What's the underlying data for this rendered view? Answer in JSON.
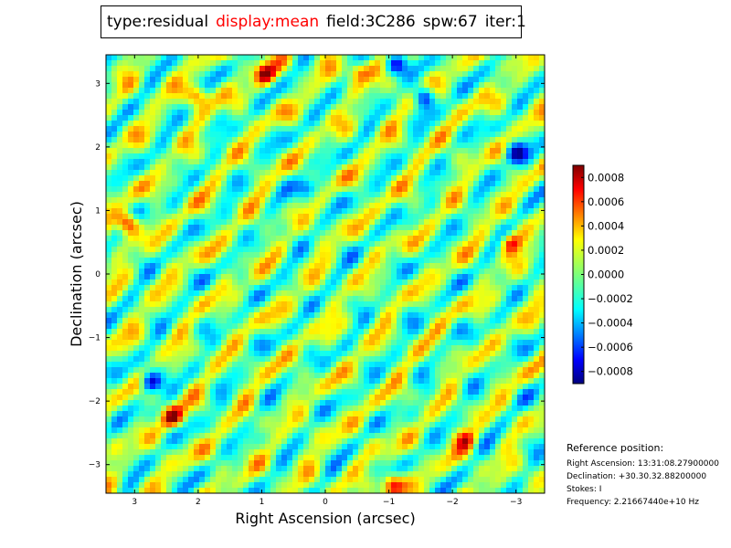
{
  "header": {
    "type_label": "type:residual",
    "display_label": "display:mean",
    "field_label": "field:3C286",
    "spw_label": "spw:67",
    "iter_label": "iter:1",
    "accent_color": "#ff0000"
  },
  "reference": {
    "title": "Reference position:",
    "lines": [
      "Right Ascension: 13:31:08.27900000",
      "Declination: +30.30.32.88200000",
      "Stokes: I",
      "Frequency: 2.21667440e+10 Hz"
    ]
  },
  "chart_data": {
    "type": "heatmap",
    "title": "",
    "xlabel": "Right Ascension (arcsec)",
    "ylabel": "Declination (arcsec)",
    "xlim": [
      3.45,
      -3.45
    ],
    "ylim": [
      -3.45,
      3.45
    ],
    "x_ticks": [
      3,
      2,
      1,
      0,
      -1,
      -2,
      -3
    ],
    "x_tick_labels": [
      "3",
      "2",
      "1",
      "0",
      "−1",
      "−2",
      "−3"
    ],
    "y_ticks": [
      3,
      2,
      1,
      0,
      -1,
      -2,
      -3
    ],
    "y_tick_labels": [
      "3",
      "2",
      "1",
      "0",
      "−1",
      "−2",
      "−3"
    ],
    "colormap": "jet",
    "colorbar": {
      "min": -0.0009,
      "max": 0.0009,
      "ticks": [
        0.0008,
        0.0006,
        0.0004,
        0.0002,
        0.0,
        -0.0002,
        -0.0004,
        -0.0006,
        -0.0008
      ],
      "tick_labels": [
        "0.0008",
        "0.0006",
        "0.0004",
        "0.0002",
        "0.0000",
        "−0.0002",
        "−0.0004",
        "−0.0006",
        "−0.0008"
      ]
    },
    "features": [
      {
        "x": 3.1,
        "y": 0.8,
        "value": 0.00085
      },
      {
        "x": 0.95,
        "y": 3.15,
        "value": 0.0008
      },
      {
        "x": 2.4,
        "y": -2.25,
        "value": 0.00075
      },
      {
        "x": -1.05,
        "y": -3.3,
        "value": 0.0008
      },
      {
        "x": -2.9,
        "y": 0.5,
        "value": 0.0007
      },
      {
        "x": 2.0,
        "y": 2.8,
        "value": 0.0006
      },
      {
        "x": -0.5,
        "y": 3.2,
        "value": 0.0006
      },
      {
        "x": -2.2,
        "y": -2.6,
        "value": 0.0005
      },
      {
        "x": 2.75,
        "y": -1.7,
        "value": -0.00085
      },
      {
        "x": -1.55,
        "y": 2.8,
        "value": -0.0007
      },
      {
        "x": -3.0,
        "y": 1.9,
        "value": -0.00075
      },
      {
        "x": -1.1,
        "y": 3.3,
        "value": -0.0006
      },
      {
        "x": 0.3,
        "y": 1.35,
        "value": -0.0005
      }
    ]
  }
}
